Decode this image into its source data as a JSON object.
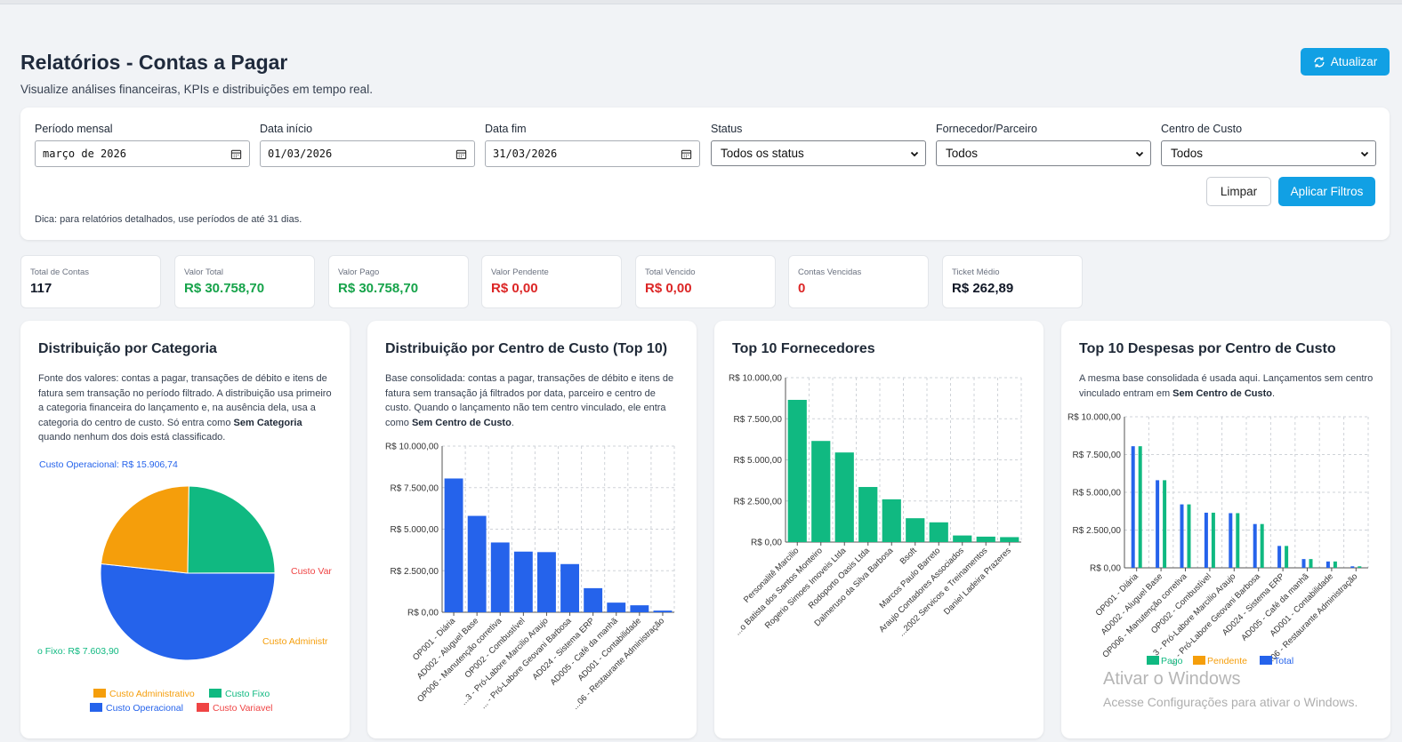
{
  "header": {
    "title": "Relatórios - Contas a Pagar",
    "subtitle": "Visualize análises financeiras, KPIs e distribuições em tempo real.",
    "refresh_label": "Atualizar"
  },
  "filters": {
    "period_label": "Período mensal",
    "period_value": "março de 2026",
    "start_label": "Data início",
    "start_value": "01/03/2026",
    "end_label": "Data fim",
    "end_value": "31/03/2026",
    "status_label": "Status",
    "status_value": "Todos os status",
    "supplier_label": "Fornecedor/Parceiro",
    "supplier_value": "Todos",
    "costcenter_label": "Centro de Custo",
    "costcenter_value": "Todos",
    "clear_label": "Limpar",
    "apply_label": "Aplicar Filtros",
    "tip": "Dica: para relatórios detalhados, use períodos de até 31 dias."
  },
  "kpis": [
    {
      "label": "Total de Contas",
      "value": "117",
      "color": "#111827"
    },
    {
      "label": "Valor Total",
      "value": "R$ 30.758,70",
      "color": "#16a34a"
    },
    {
      "label": "Valor Pago",
      "value": "R$ 30.758,70",
      "color": "#16a34a"
    },
    {
      "label": "Valor Pendente",
      "value": "R$ 0,00",
      "color": "#dc2626"
    },
    {
      "label": "Total Vencido",
      "value": "R$ 0,00",
      "color": "#dc2626"
    },
    {
      "label": "Contas Vencidas",
      "value": "0",
      "color": "#dc2626"
    },
    {
      "label": "Ticket Médio",
      "value": "R$ 262,89",
      "color": "#111827"
    }
  ],
  "cards": {
    "category": {
      "title": "Distribuição por Categoria",
      "desc_1": "Fonte dos valores: contas a pagar, transações de débito e itens de fatura sem transação no período filtrado. A distribuição usa primeiro a categoria financeira do lançamento e, na ausência dela, usa a categoria do centro de custo. Só entra como ",
      "desc_bold": "Sem Categoria",
      "desc_2": " quando nenhum dos dois está classificado."
    },
    "costcenter": {
      "title": "Distribuição por Centro de Custo (Top 10)",
      "desc_1": "Base consolidada: contas a pagar, transações de débito e itens de fatura sem transação já filtrados por data, parceiro e centro de custo. Quando o lançamento não tem centro vinculado, ele entra como ",
      "desc_bold": "Sem Centro de Custo",
      "desc_2": "."
    },
    "suppliers": {
      "title": "Top 10 Fornecedores"
    },
    "expenses": {
      "title": "Top 10 Despesas por Centro de Custo",
      "desc_1": "A mesma base consolidada é usada aqui. Lançamentos sem centro vinculado entram em ",
      "desc_bold": "Sem Centro de Custo",
      "desc_2": "."
    }
  },
  "chart_data": [
    {
      "type": "pie",
      "title": "Distribuição por Categoria",
      "categories": [
        "Custo Operacional",
        "Custo Administrativo",
        "Custo Fixo",
        "Custo Variavel"
      ],
      "values": [
        15906.74,
        7233.06,
        7603.9,
        15.0
      ],
      "colors": [
        "#2563eb",
        "#f59e0b",
        "#10b981",
        "#ef4444"
      ],
      "slice_labels": [
        "Custo Operacional: R$ 15.906,74",
        "Custo Administr",
        "o Fixo: R$ 7.603,90",
        "Custo Var"
      ],
      "legend": [
        "Custo Administrativo",
        "Custo Fixo",
        "Custo Operacional",
        "Custo Variavel"
      ],
      "legend_position": "bottom"
    },
    {
      "type": "bar",
      "title": "Distribuição por Centro de Custo (Top 10)",
      "categories": [
        "OP001 - Diária",
        "AD002 - Aluguel Base",
        "OP006 - Manutenção corretiva",
        "OP002 - Combustível",
        "...3 - Pró-Labore Marcilio Araujo",
        "... - Pró-Labore Geovani Barbosa",
        "AD024 - Sistema ERP",
        "AD005 - Café da manhã",
        "AD001 - Contabilidade",
        "...06 - Restaurante Administração"
      ],
      "values": [
        8050,
        5800,
        4200,
        3650,
        3620,
        2900,
        1450,
        580,
        420,
        100
      ],
      "ytick_labels": [
        "R$ 0,00",
        "R$ 2.500,00",
        "R$ 5.000,00",
        "R$ 7.500,00",
        "R$ 10.000,00"
      ],
      "ylim": [
        0,
        10000
      ],
      "color": "#2563eb",
      "grid": true
    },
    {
      "type": "bar",
      "title": "Top 10 Fornecedores",
      "categories": [
        "Personalitê Marcilio",
        "...o Batista dos Santos Monteiro",
        "Rogerio Simoes Imoveis Ltda",
        "Rodoporto Oasis Ltda",
        "Dalmeruso da Silva Barbosa",
        "Bsoft",
        "Marcos Paulo Barreto",
        "Araujo Contadores Associados",
        "...2002 Servicos e Treinamentos",
        "Daniel Ladeira Prazeres"
      ],
      "values": [
        8650,
        6150,
        5450,
        3350,
        2600,
        1450,
        1200,
        400,
        330,
        300
      ],
      "ytick_labels": [
        "R$ 0,00",
        "R$ 2.500,00",
        "R$ 5.000,00",
        "R$ 7.500,00",
        "R$ 10.000,00"
      ],
      "ylim": [
        0,
        10000
      ],
      "color": "#10b981",
      "grid": true
    },
    {
      "type": "bar",
      "title": "Top 10 Despesas por Centro de Custo",
      "categories": [
        "OP001 - Diária",
        "AD002 - Aluguel Base",
        "OP006 - Manutenção corretiva",
        "OP002 - Combustível",
        "...3 - Pró-Labore Marcilio Araujo",
        "... - Pró-Labore Geovani Barbosa",
        "AD024 - Sistema ERP",
        "AD005 - Café da manhã",
        "AD001 - Contabilidade",
        "...06 - Restaurante Administração"
      ],
      "series": [
        {
          "name": "Pago",
          "values": [
            8050,
            5800,
            4200,
            3650,
            3620,
            2900,
            1450,
            580,
            420,
            100
          ],
          "color": "#10b981"
        },
        {
          "name": "Pendente",
          "values": [
            0,
            0,
            0,
            0,
            0,
            0,
            0,
            0,
            0,
            0
          ],
          "color": "#f59e0b"
        },
        {
          "name": "Total",
          "values": [
            8050,
            5800,
            4200,
            3650,
            3620,
            2900,
            1450,
            580,
            420,
            100
          ],
          "color": "#2563eb"
        }
      ],
      "ytick_labels": [
        "R$ 0,00",
        "R$ 2.500,00",
        "R$ 5.000,00",
        "R$ 7.500,00",
        "R$ 10.000,00"
      ],
      "ylim": [
        0,
        10000
      ],
      "legend_position": "bottom",
      "grid": true
    }
  ],
  "watermark": {
    "line1": "Ativar o Windows",
    "line2": "Acesse Configurações para ativar o Windows."
  }
}
